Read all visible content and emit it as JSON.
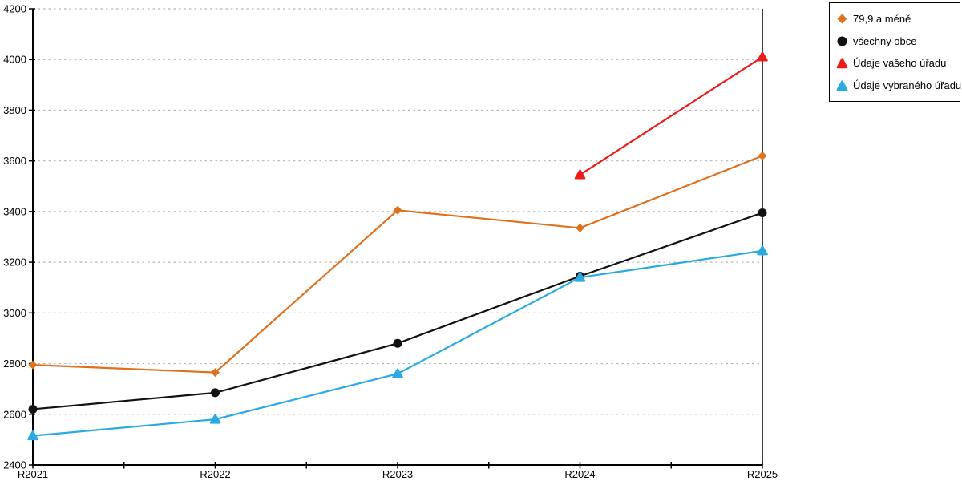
{
  "chart_data": {
    "type": "line",
    "title": "",
    "xlabel": "",
    "ylabel": "",
    "x_categories": [
      "R2021",
      "R2022",
      "R2023",
      "R2024",
      "R2025"
    ],
    "ylim": [
      2400,
      4200
    ],
    "y_tick_step": 200,
    "y_tick_labels": [
      "2400",
      "2600",
      "2800",
      "3000",
      "3200",
      "3400",
      "3600",
      "3800",
      "4000",
      "4200"
    ],
    "grid": "horizontal-dashed",
    "x_minor_ticks_between_categories": true,
    "legend_position": "outside-top-right",
    "series": [
      {
        "name": "79,9 a méně",
        "marker": "diamond",
        "color": "#df701c",
        "values": [
          2795,
          2765,
          3405,
          3335,
          3620
        ]
      },
      {
        "name": "všechny obce",
        "marker": "circle",
        "color": "#121212",
        "values": [
          2620,
          2685,
          2880,
          3145,
          3395
        ]
      },
      {
        "name": "Údaje vašeho úřadu",
        "marker": "triangle-up",
        "color": "#ee1b1b",
        "values": [
          null,
          null,
          null,
          3545,
          4010
        ]
      },
      {
        "name": "Údaje vybraného úřadu",
        "marker": "triangle-up",
        "color": "#29abe2",
        "values": [
          2515,
          2580,
          2760,
          3140,
          3245
        ]
      }
    ],
    "colors": {
      "axis": "#000000",
      "grid": "#b5b5b5",
      "text": "#000000",
      "background": "#ffffff"
    }
  }
}
